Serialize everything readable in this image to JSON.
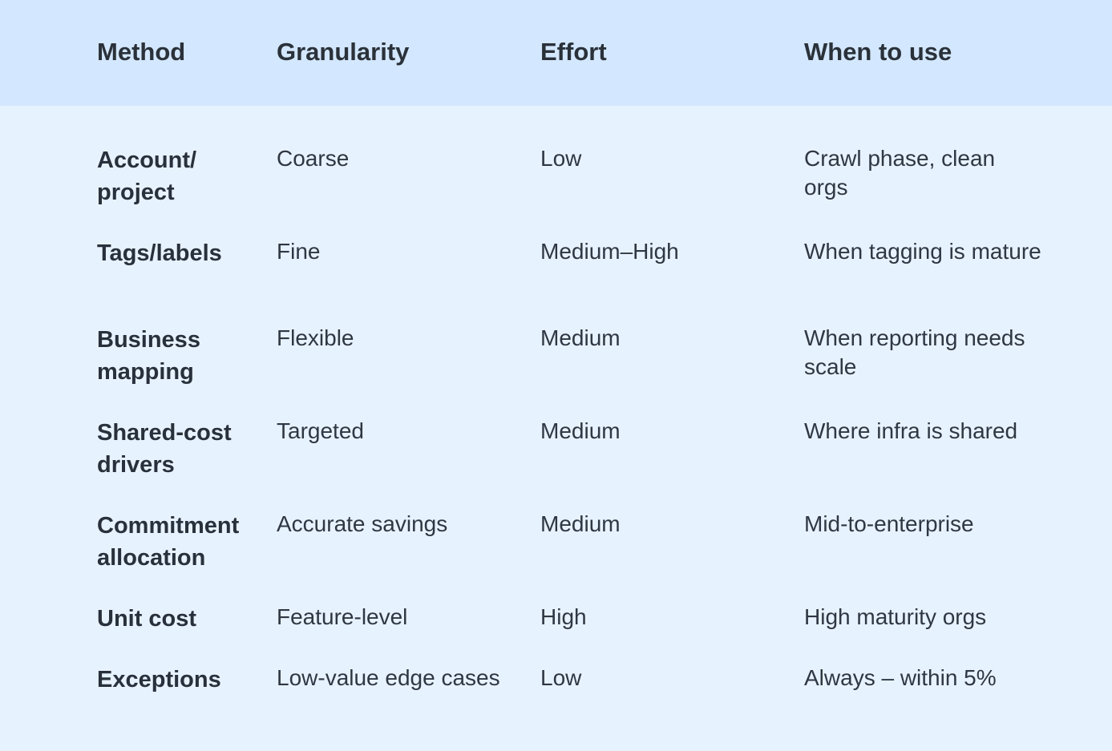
{
  "header": {
    "method": "Method",
    "granularity": "Granularity",
    "effort": "Effort",
    "when": "When to use"
  },
  "rows": [
    {
      "method": "Account/ project",
      "granularity": "Coarse",
      "effort": "Low",
      "when": "Crawl phase, clean orgs"
    },
    {
      "method": "Tags/labels",
      "granularity": "Fine",
      "effort": "Medium–High",
      "when": "When tagging is mature"
    },
    {
      "method": "Business mapping",
      "granularity": "Flexible",
      "effort": "Medium",
      "when": "When reporting needs scale"
    },
    {
      "method": "Shared-cost drivers",
      "granularity": "Targeted",
      "effort": "Medium",
      "when": "Where infra is shared"
    },
    {
      "method": "Commitment allocation",
      "granularity": "Accurate savings",
      "effort": "Medium",
      "when": "Mid-to-enterprise"
    },
    {
      "method": "Unit cost",
      "granularity": "Feature-level",
      "effort": "High",
      "when": "High maturity orgs"
    },
    {
      "method": "Exceptions",
      "granularity": "Low-value edge cases",
      "effort": "Low",
      "when": "Always – within 5%"
    }
  ],
  "colors": {
    "header_bg": "#d3e7fe",
    "body_bg": "#e7f2ff",
    "text": "#2c3540"
  }
}
